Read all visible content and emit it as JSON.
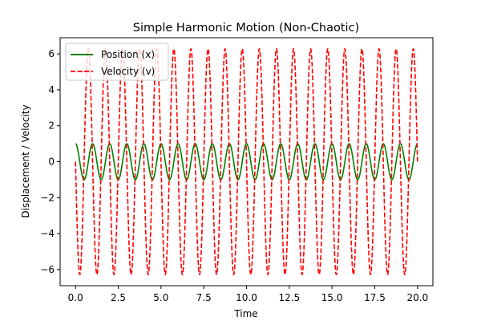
{
  "chart_data": {
    "type": "line",
    "title": "Simple Harmonic Motion (Non-Chaotic)",
    "xlabel": "Time",
    "ylabel": "Displacement / Velocity",
    "xlim": [
      -0.9,
      20.9
    ],
    "ylim": [
      -6.9,
      6.9
    ],
    "xticks": [
      0.0,
      2.5,
      5.0,
      7.5,
      10.0,
      12.5,
      15.0,
      17.5,
      20.0
    ],
    "xtick_labels": [
      "0.0",
      "2.5",
      "5.0",
      "7.5",
      "10.0",
      "12.5",
      "15.0",
      "17.5",
      "20.0"
    ],
    "yticks": [
      -6,
      -4,
      -2,
      0,
      2,
      4,
      6
    ],
    "ytick_labels": [
      "−6",
      "−4",
      "−2",
      "0",
      "2",
      "4",
      "6"
    ],
    "grid": false,
    "legend_position": "top-left",
    "model": {
      "t_start": 0,
      "t_end": 20,
      "amplitude": 1.0,
      "omega": 6.283185307
    },
    "series": [
      {
        "name": "Position (x)",
        "expression": "cos(omega*t)",
        "color": "#008000",
        "style": "solid"
      },
      {
        "name": "Velocity (v)",
        "expression": "-amplitude*omega*sin(omega*t)",
        "color": "#ff0000",
        "style": "dashed"
      }
    ]
  }
}
